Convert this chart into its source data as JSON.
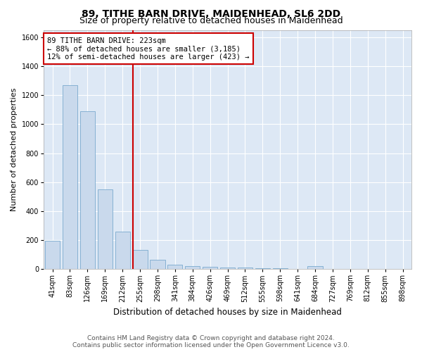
{
  "title": "89, TITHE BARN DRIVE, MAIDENHEAD, SL6 2DD",
  "subtitle": "Size of property relative to detached houses in Maidenhead",
  "xlabel": "Distribution of detached houses by size in Maidenhead",
  "ylabel": "Number of detached properties",
  "categories": [
    "41sqm",
    "83sqm",
    "126sqm",
    "169sqm",
    "212sqm",
    "255sqm",
    "298sqm",
    "341sqm",
    "384sqm",
    "426sqm",
    "469sqm",
    "512sqm",
    "555sqm",
    "598sqm",
    "641sqm",
    "684sqm",
    "727sqm",
    "769sqm",
    "812sqm",
    "855sqm",
    "898sqm"
  ],
  "values": [
    196,
    1270,
    1090,
    550,
    260,
    130,
    62,
    32,
    20,
    15,
    10,
    10,
    5,
    5,
    0,
    20,
    0,
    0,
    0,
    0,
    0
  ],
  "bar_color": "#c9d9ec",
  "bar_edge_color": "#7aaace",
  "highlight_line_color": "#cc0000",
  "annotation_text": "89 TITHE BARN DRIVE: 223sqm\n← 88% of detached houses are smaller (3,185)\n12% of semi-detached houses are larger (423) →",
  "annotation_box_color": "#ffffff",
  "annotation_box_edge_color": "#cc0000",
  "ylim": [
    0,
    1650
  ],
  "yticks": [
    0,
    200,
    400,
    600,
    800,
    1000,
    1200,
    1400,
    1600
  ],
  "fig_background_color": "#ffffff",
  "plot_background_color": "#dde8f5",
  "grid_color": "#ffffff",
  "footer_line1": "Contains HM Land Registry data © Crown copyright and database right 2024.",
  "footer_line2": "Contains public sector information licensed under the Open Government Licence v3.0.",
  "title_fontsize": 10,
  "subtitle_fontsize": 9,
  "xlabel_fontsize": 8.5,
  "ylabel_fontsize": 8,
  "tick_fontsize": 7,
  "annotation_fontsize": 7.5,
  "footer_fontsize": 6.5
}
